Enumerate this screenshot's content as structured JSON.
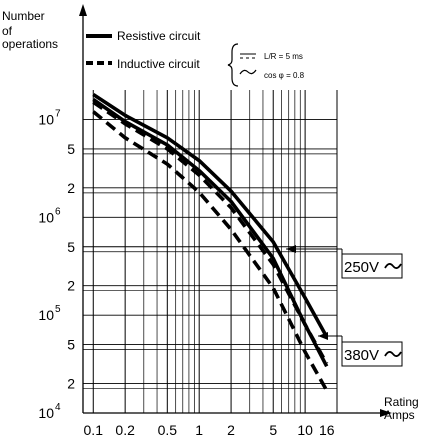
{
  "chart_data": {
    "type": "line",
    "ylabel_lines": [
      "Number",
      "of",
      "operations"
    ],
    "xlabel_lines": [
      "Rating in",
      "Amps"
    ],
    "x_scale": "log",
    "y_scale": "log",
    "xlim": [
      0.08,
      20
    ],
    "ylim": [
      10000,
      20000000
    ],
    "grid": true,
    "x_ticks": [
      {
        "value": 0.1,
        "label": "0.1"
      },
      {
        "value": 0.2,
        "label": "0.2"
      },
      {
        "value": 0.5,
        "label": "0.5"
      },
      {
        "value": 1,
        "label": "1"
      },
      {
        "value": 2,
        "label": "2"
      },
      {
        "value": 5,
        "label": "5"
      },
      {
        "value": 10,
        "label": "10"
      },
      {
        "value": 16,
        "label": "16"
      }
    ],
    "y_ticks": [
      {
        "value": 10000,
        "mant": "10",
        "exp": "4"
      },
      {
        "value": 20000,
        "mant": "2",
        "exp": ""
      },
      {
        "value": 50000,
        "mant": "5",
        "exp": ""
      },
      {
        "value": 100000,
        "mant": "10",
        "exp": "5"
      },
      {
        "value": 200000,
        "mant": "2",
        "exp": ""
      },
      {
        "value": 500000,
        "mant": "5",
        "exp": ""
      },
      {
        "value": 1000000,
        "mant": "10",
        "exp": "6"
      },
      {
        "value": 2000000,
        "mant": "2",
        "exp": ""
      },
      {
        "value": 5000000,
        "mant": "5",
        "exp": ""
      },
      {
        "value": 10000000,
        "mant": "10",
        "exp": "7"
      }
    ],
    "legend": {
      "placement": "top",
      "entries": [
        {
          "label": "Resistive circuit",
          "style": "solid"
        },
        {
          "label": "Inductive circuit",
          "style": "dashed"
        }
      ],
      "symbols": [
        {
          "symbol": "dc",
          "label": "L/R = 5 ms"
        },
        {
          "symbol": "ac",
          "label": "cos φ = 0.8"
        }
      ]
    },
    "voltage_labels": [
      {
        "label": "250V",
        "symbol": "ac"
      },
      {
        "label": "380V",
        "symbol": "ac"
      }
    ],
    "series": [
      {
        "group": "250V",
        "style": "solid",
        "x": [
          0.1,
          0.2,
          0.5,
          1,
          2,
          5,
          10,
          16
        ],
        "y": [
          18000000,
          11000000,
          6500000,
          3800000,
          1850000,
          560000,
          150000,
          60000
        ]
      },
      {
        "group": "250V",
        "style": "dashed",
        "x": [
          0.1,
          0.2,
          0.5,
          1,
          2,
          5,
          10,
          16
        ],
        "y": [
          15000000,
          9000000,
          5000000,
          2700000,
          1250000,
          330000,
          80000,
          32000
        ]
      },
      {
        "group": "380V",
        "style": "solid",
        "x": [
          0.1,
          0.2,
          0.5,
          1,
          2,
          5,
          10,
          16
        ],
        "y": [
          16000000,
          9500000,
          5500000,
          3000000,
          1450000,
          380000,
          80000,
          30000
        ]
      },
      {
        "group": "380V",
        "style": "dashed",
        "x": [
          0.1,
          0.2,
          0.5,
          1,
          2,
          5,
          10,
          16
        ],
        "y": [
          12000000,
          6500000,
          3500000,
          1800000,
          750000,
          190000,
          42000,
          17000
        ]
      }
    ]
  }
}
